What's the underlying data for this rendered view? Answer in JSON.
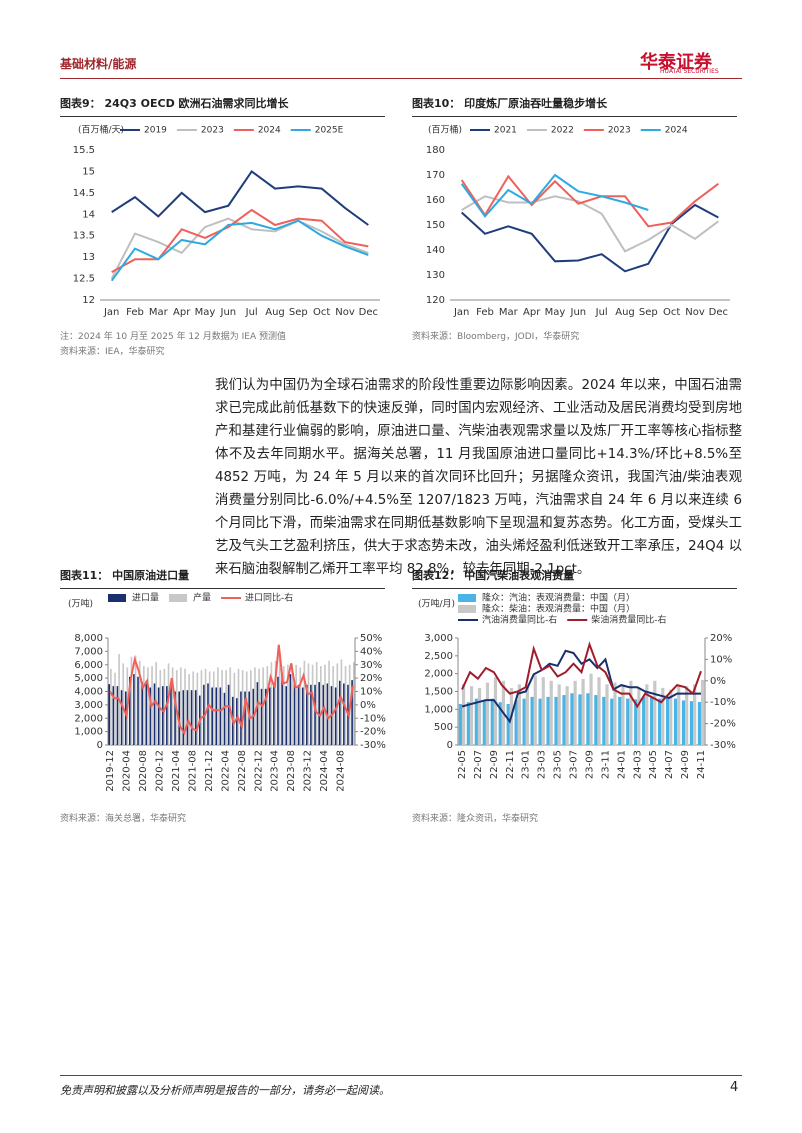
{
  "header": {
    "section": "基础材料/能源",
    "logo": "华泰证券",
    "logo_en": "HUATAI SECURITIES"
  },
  "chart_data": [
    {
      "type": "line",
      "figure_label": "图表9：",
      "title": "24Q3 OECD 欧洲石油需求同比增长",
      "y_unit": "(百万桶/天)",
      "categories": [
        "Jan",
        "Feb",
        "Mar",
        "Apr",
        "May",
        "Jun",
        "Jul",
        "Aug",
        "Sep",
        "Oct",
        "Nov",
        "Dec"
      ],
      "ylim": [
        12,
        15.5
      ],
      "yticks": [
        12,
        12.5,
        13,
        13.5,
        14,
        14.5,
        15,
        15.5
      ],
      "series": [
        {
          "name": "2019",
          "color": "#1f3d7a",
          "values": [
            14.05,
            14.4,
            13.95,
            14.5,
            14.05,
            14.2,
            15.0,
            14.6,
            14.65,
            14.6,
            14.15,
            13.75
          ]
        },
        {
          "name": "2023",
          "color": "#bfbfbf",
          "values": [
            12.5,
            13.55,
            13.35,
            13.1,
            13.7,
            13.9,
            13.65,
            13.6,
            13.85,
            13.6,
            13.3,
            13.1
          ]
        },
        {
          "name": "2024",
          "color": "#f0605a",
          "values": [
            12.65,
            12.95,
            12.95,
            13.65,
            13.45,
            13.7,
            14.1,
            13.75,
            13.9,
            13.85,
            13.35,
            13.25
          ]
        },
        {
          "name": "2025E",
          "color": "#2eaae1",
          "values": [
            12.45,
            13.2,
            12.95,
            13.4,
            13.3,
            13.75,
            13.8,
            13.65,
            13.85,
            13.5,
            13.25,
            13.05
          ]
        }
      ],
      "notes": [
        "注：2024 年 10 月至 2025 年 12 月数据为 IEA 预测值",
        "资料来源：IEA，华泰研究"
      ]
    },
    {
      "type": "line",
      "figure_label": "图表10：",
      "title": "印度炼厂原油吞吐量稳步增长",
      "y_unit": "(百万桶)",
      "categories": [
        "Jan",
        "Feb",
        "Mar",
        "Apr",
        "May",
        "Jun",
        "Jul",
        "Aug",
        "Sep",
        "Oct",
        "Nov",
        "Dec"
      ],
      "ylim": [
        120,
        180
      ],
      "yticks": [
        120,
        130,
        140,
        150,
        160,
        170,
        180
      ],
      "series": [
        {
          "name": "2021",
          "color": "#1f3d7a",
          "values": [
            155,
            146.5,
            149.5,
            146.5,
            135.5,
            135.8,
            138.3,
            131.5,
            134.5,
            150.5,
            158,
            153
          ]
        },
        {
          "name": "2022",
          "color": "#bfbfbf",
          "values": [
            156,
            161.5,
            159,
            159,
            161.5,
            159.5,
            154.5,
            139.5,
            144,
            150,
            144.5,
            151.5
          ]
        },
        {
          "name": "2023",
          "color": "#f0605a",
          "values": [
            168,
            154,
            169.5,
            158,
            167.5,
            158.5,
            161.5,
            161.5,
            149.5,
            151,
            159.5,
            166.5
          ]
        },
        {
          "name": "2024",
          "color": "#2eaae1",
          "values": [
            166.5,
            153.5,
            164,
            158.5,
            170,
            163.5,
            161.5,
            159,
            156,
            null,
            null,
            null
          ]
        }
      ],
      "notes": [
        "资料来源：Bloomberg，JODI，华泰研究"
      ]
    },
    {
      "type": "combo",
      "figure_label": "图表11：",
      "title": "中国原油进口量",
      "y_unit": "(万吨)",
      "categories": [
        "2019-12",
        null,
        null,
        null,
        "2020-04",
        null,
        null,
        null,
        "2020-08",
        null,
        null,
        null,
        "2020-12",
        null,
        null,
        null,
        "2021-04",
        null,
        null,
        null,
        "2021-08",
        null,
        null,
        null,
        "2021-12",
        null,
        null,
        null,
        "2022-04",
        null,
        null,
        null,
        "2022-08",
        null,
        null,
        null,
        "2022-12",
        null,
        null,
        null,
        "2023-04",
        null,
        null,
        null,
        "2023-08",
        null,
        null,
        null,
        "2023-12",
        null,
        null,
        null,
        "2024-04",
        null,
        null,
        null,
        "2024-08",
        null,
        null,
        null
      ],
      "ylim": [
        0,
        8000
      ],
      "yticks": [
        0,
        {
          "value": 1000,
          "label": "1,000"
        },
        {
          "value": 2000,
          "label": "2,000"
        },
        {
          "value": 3000,
          "label": "3,000"
        },
        {
          "value": 4000,
          "label": "4,000"
        },
        {
          "value": 5000,
          "label": "5,000"
        },
        {
          "value": 6000,
          "label": "6,000"
        },
        {
          "value": 7000,
          "label": "7,000"
        },
        {
          "value": 8000,
          "label": "8,000"
        }
      ],
      "y2lim": [
        -30,
        50
      ],
      "y2ticks": [
        {
          "value": -30,
          "label": "-30%"
        },
        {
          "value": -20,
          "label": "-20%"
        },
        {
          "value": -10,
          "label": "-10%"
        },
        {
          "value": 0,
          "label": "0%"
        },
        {
          "value": 10,
          "label": "10%"
        },
        {
          "value": 20,
          "label": "20%"
        },
        {
          "value": 30,
          "label": "30%"
        },
        {
          "value": 40,
          "label": "40%"
        },
        {
          "value": 50,
          "label": "50%"
        }
      ],
      "series": [
        {
          "name": "进口量",
          "color": "#1a2f6e",
          "values": [
            4550,
            4400,
            4400,
            4100,
            4000,
            5100,
            5300,
            5100,
            4700,
            4800,
            4300,
            4600,
            4300,
            4400,
            4400,
            4700,
            4000,
            4000,
            4100,
            4100,
            4100,
            4100,
            3700,
            4500,
            4600,
            4300,
            4300,
            4300,
            3900,
            4500,
            3600,
            3500,
            4000,
            4000,
            4000,
            4200,
            4700,
            4200,
            4200,
            4300,
            4400,
            5100,
            5300,
            4400,
            5300,
            4800,
            4500,
            4300,
            4500,
            4500,
            4500,
            4700,
            4500,
            4600,
            4400,
            4300,
            4800,
            4600,
            4500,
            4852
          ]
        },
        {
          "name": "产量",
          "color": "#c8c8c8",
          "values": [
            5700,
            5400,
            6800,
            6100,
            5800,
            6600,
            6700,
            6300,
            5900,
            5800,
            5900,
            6200,
            5600,
            5700,
            6100,
            5800,
            5600,
            5800,
            5700,
            5300,
            5500,
            5400,
            5600,
            5700,
            5500,
            5500,
            5800,
            5600,
            5600,
            5800,
            5400,
            5700,
            5600,
            5500,
            5600,
            5800,
            5700,
            5800,
            5900,
            6200,
            6300,
            7000,
            5900,
            6000,
            6100,
            6000,
            5800,
            6300,
            6100,
            6000,
            6200,
            5900,
            6000,
            6300,
            5900,
            6100,
            6400,
            5900,
            6000,
            6200
          ]
        },
        {
          "name": "进口同比-右",
          "color": "#f0605a",
          "axis": "y2",
          "values": [
            10,
            5,
            5,
            -1,
            -8,
            19,
            34,
            25,
            13,
            18,
            -1,
            3,
            -2,
            -5,
            2,
            20,
            -1,
            -16,
            -21,
            -12,
            -18,
            -19,
            -10,
            -8,
            0,
            -4,
            -4,
            -4,
            -1,
            -1,
            -14,
            -9,
            -16,
            5,
            -10,
            -8,
            2,
            -1,
            6,
            21,
            13,
            45,
            16,
            17,
            31,
            13,
            14,
            22,
            8,
            9,
            -5,
            -8,
            -2,
            -10,
            -7,
            -2,
            6,
            -1,
            -8,
            14.3
          ]
        }
      ],
      "notes": [
        "资料来源：海关总署，华泰研究"
      ]
    },
    {
      "type": "combo",
      "figure_label": "图表12：",
      "title": "中国汽柴油表观消费量",
      "y_unit": "(万吨/月)",
      "categories": [
        "22-05",
        null,
        "22-07",
        null,
        "22-09",
        null,
        "22-11",
        null,
        "23-01",
        null,
        "23-03",
        null,
        "23-05",
        null,
        "23-07",
        null,
        "23-09",
        null,
        "23-11",
        null,
        "24-01",
        null,
        "24-03",
        null,
        "24-05",
        null,
        "24-07",
        null,
        "24-09",
        null,
        "24-11"
      ],
      "ylim": [
        0,
        3000
      ],
      "yticks": [
        0,
        500,
        {
          "value": 1000,
          "label": "1,000"
        },
        {
          "value": 1500,
          "label": "1,500"
        },
        {
          "value": 2000,
          "label": "2,000"
        },
        {
          "value": 2500,
          "label": "2,500"
        },
        {
          "value": 3000,
          "label": "3,000"
        }
      ],
      "y2lim": [
        -30,
        20
      ],
      "y2ticks": [
        {
          "value": -30,
          "label": "-30%"
        },
        {
          "value": -20,
          "label": "-20%"
        },
        {
          "value": -10,
          "label": "-10%"
        },
        {
          "value": 0,
          "label": "0%"
        },
        {
          "value": 10,
          "label": "10%"
        },
        {
          "value": 20,
          "label": "20%"
        }
      ],
      "series": [
        {
          "name": "隆众：汽油：表观消费量：中国（月）",
          "color": "#4bb4e6",
          "values": [
            1150,
            1200,
            1300,
            1250,
            1300,
            1200,
            1150,
            1250,
            1300,
            1350,
            1300,
            1350,
            1350,
            1400,
            1450,
            1420,
            1450,
            1400,
            1350,
            1300,
            1350,
            1300,
            1280,
            1350,
            1350,
            1300,
            1320,
            1300,
            1250,
            1230,
            1207
          ]
        },
        {
          "name": "隆众：柴油：表观消费量：中国（月）",
          "color": "#c8c8c8",
          "values": [
            1700,
            1650,
            1600,
            1750,
            1900,
            1800,
            1600,
            1700,
            1700,
            1950,
            1900,
            1800,
            1700,
            1650,
            1800,
            1850,
            2000,
            1900,
            1700,
            1750,
            1700,
            1800,
            1600,
            1700,
            1800,
            1600,
            1550,
            1650,
            1650,
            1700,
            1823
          ]
        },
        {
          "name": "汽油消费量同比-右",
          "color": "#1a2f6e",
          "axis": "y2",
          "values": [
            -12,
            -11,
            -10,
            -9,
            -9,
            -14,
            -19,
            -6,
            -5,
            3,
            5,
            8,
            7,
            14,
            13,
            8,
            10,
            6,
            10,
            -4,
            -2,
            -3,
            -3,
            -5,
            -6,
            -7,
            -8,
            -6,
            -6,
            -6,
            -6
          ]
        },
        {
          "name": "柴油消费量同比-右",
          "color": "#a01c2a",
          "axis": "y2",
          "values": [
            -4,
            4,
            1,
            6,
            4,
            -2,
            -6,
            -5,
            -3,
            15,
            5,
            7,
            2,
            4,
            8,
            4,
            17,
            7,
            4,
            -4,
            -6,
            -6,
            -12,
            -6,
            -8,
            -10,
            -6,
            -2,
            -3,
            -6,
            4.5
          ]
        }
      ],
      "notes": [
        "资料来源：隆众资讯，华泰研究"
      ]
    }
  ],
  "body": {
    "paragraph": "我们认为中国仍为全球石油需求的阶段性重要边际影响因素。2024 年以来，中国石油需求已完成此前低基数下的快速反弹，同时国内宏观经济、工业活动及居民消费均受到房地产和基建行业偏弱的影响，原油进口量、汽柴油表观需求量以及炼厂开工率等核心指标整体不及去年同期水平。据海关总署，11 月我国原油进口量同比+14.3%/环比+8.5%至 4852 万吨，为 24 年 5 月以来的首次同环比回升；另据隆众资讯，我国汽油/柴油表观消费量分别同比-6.0%/+4.5%至 1207/1823 万吨，汽油需求自 24 年 6 月以来连续 6 个月同比下滑，而柴油需求在同期低基数影响下呈现温和复苏态势。化工方面，受煤头工艺及气头工艺盈利挤压，供大于求态势未改，油头烯烃盈利低迷致开工率承压，24Q4 以来石脑油裂解制乙烯开工率平均 82.8%，较去年同期-2.1pct。"
  },
  "footer": {
    "disclaimer": "免责声明和披露以及分析师声明是报告的一部分，请务必一起阅读。",
    "page": "4"
  }
}
